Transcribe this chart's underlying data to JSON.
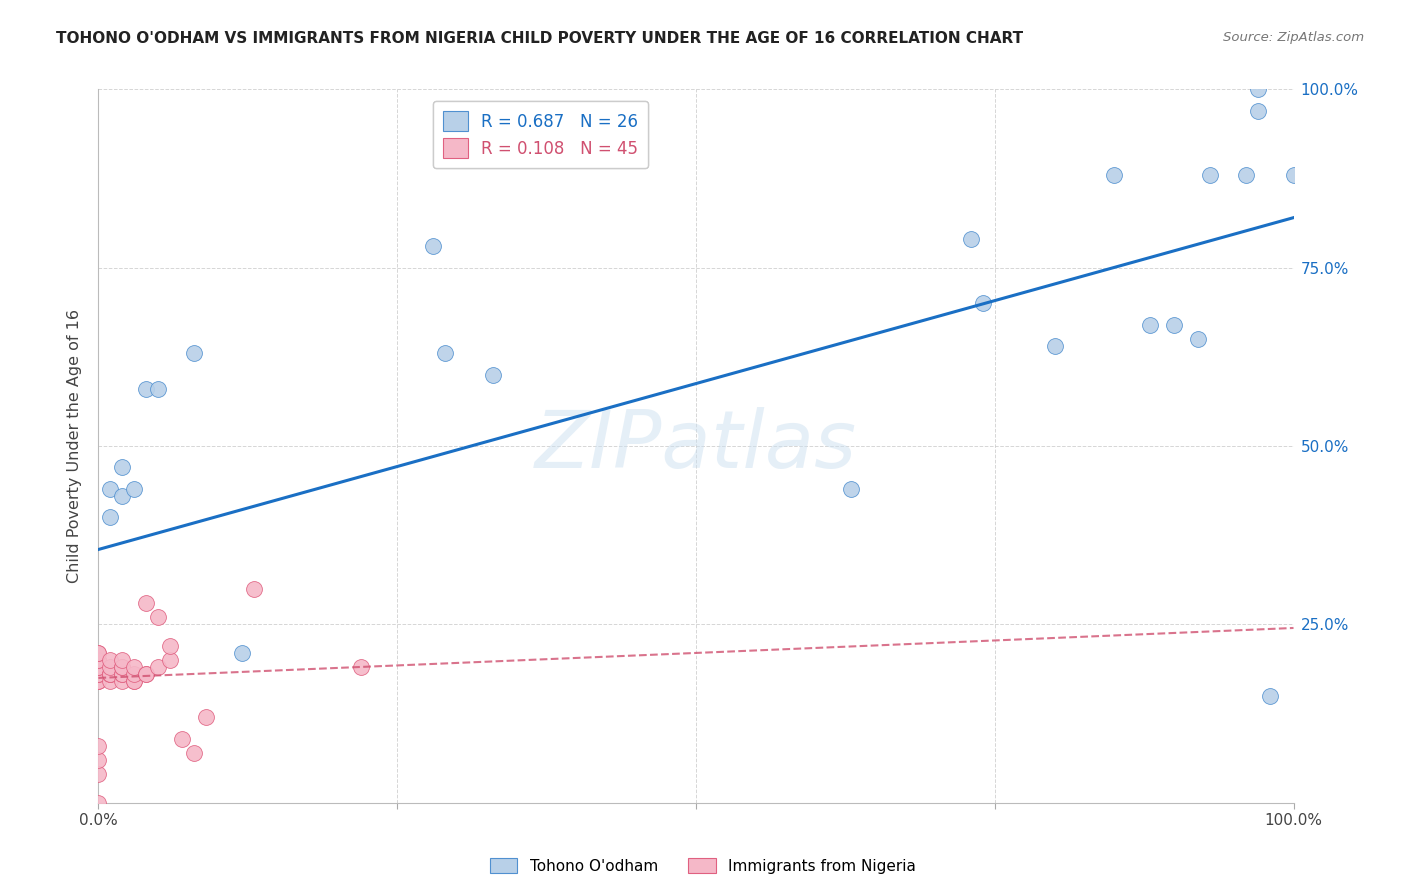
{
  "title": "TOHONO O'ODHAM VS IMMIGRANTS FROM NIGERIA CHILD POVERTY UNDER THE AGE OF 16 CORRELATION CHART",
  "source": "Source: ZipAtlas.com",
  "ylabel": "Child Poverty Under the Age of 16",
  "xlim": [
    0,
    1
  ],
  "ylim": [
    0,
    1
  ],
  "xticks": [
    0,
    0.25,
    0.5,
    0.75,
    1.0
  ],
  "yticks": [
    0,
    0.25,
    0.5,
    0.75,
    1.0
  ],
  "xticklabels": [
    "0.0%",
    "",
    "",
    "",
    "100.0%"
  ],
  "right_yticklabels": [
    "25.0%",
    "50.0%",
    "75.0%",
    "100.0%"
  ],
  "right_yticks": [
    0.25,
    0.5,
    0.75,
    1.0
  ],
  "legend_label1": "R = 0.687   N = 26",
  "legend_label2": "R = 0.108   N = 45",
  "legend_bottom_label1": "Tohono O'odham",
  "legend_bottom_label2": "Immigrants from Nigeria",
  "blue_fill_color": "#b8d0e8",
  "pink_fill_color": "#f5b8c8",
  "blue_edge_color": "#5090d0",
  "pink_edge_color": "#e06080",
  "blue_line_color": "#1a6fc4",
  "pink_line_color": "#d05070",
  "watermark": "ZIPatlas",
  "background_color": "#ffffff",
  "grid_color": "#cccccc",
  "blue_x": [
    0.01,
    0.01,
    0.02,
    0.02,
    0.03,
    0.04,
    0.05,
    0.08,
    0.12,
    0.28,
    0.29,
    0.33,
    0.63,
    0.73,
    0.74,
    0.8,
    0.85,
    0.88,
    0.9,
    0.92,
    0.93,
    0.96,
    0.97,
    0.97,
    0.98,
    1.0
  ],
  "blue_y": [
    0.4,
    0.44,
    0.43,
    0.47,
    0.44,
    0.58,
    0.58,
    0.63,
    0.21,
    0.78,
    0.63,
    0.6,
    0.44,
    0.79,
    0.7,
    0.64,
    0.88,
    0.67,
    0.67,
    0.65,
    0.88,
    0.88,
    0.97,
    1.0,
    0.15,
    0.88
  ],
  "pink_x": [
    0.0,
    0.0,
    0.0,
    0.0,
    0.0,
    0.0,
    0.0,
    0.0,
    0.0,
    0.0,
    0.0,
    0.0,
    0.0,
    0.0,
    0.0,
    0.0,
    0.0,
    0.01,
    0.01,
    0.01,
    0.01,
    0.01,
    0.01,
    0.02,
    0.02,
    0.02,
    0.02,
    0.02,
    0.02,
    0.03,
    0.03,
    0.03,
    0.03,
    0.04,
    0.04,
    0.04,
    0.05,
    0.05,
    0.06,
    0.06,
    0.07,
    0.08,
    0.09,
    0.13,
    0.22
  ],
  "pink_y": [
    0.17,
    0.17,
    0.17,
    0.18,
    0.18,
    0.18,
    0.19,
    0.19,
    0.19,
    0.2,
    0.2,
    0.21,
    0.21,
    0.0,
    0.04,
    0.06,
    0.08,
    0.17,
    0.18,
    0.18,
    0.18,
    0.19,
    0.2,
    0.17,
    0.18,
    0.18,
    0.19,
    0.19,
    0.2,
    0.17,
    0.17,
    0.18,
    0.19,
    0.18,
    0.18,
    0.28,
    0.19,
    0.26,
    0.2,
    0.22,
    0.09,
    0.07,
    0.12,
    0.3,
    0.19
  ],
  "blue_trendline_x": [
    0.0,
    1.0
  ],
  "blue_trendline_y": [
    0.355,
    0.82
  ],
  "pink_trendline_x": [
    0.0,
    1.0
  ],
  "pink_trendline_y": [
    0.175,
    0.245
  ]
}
